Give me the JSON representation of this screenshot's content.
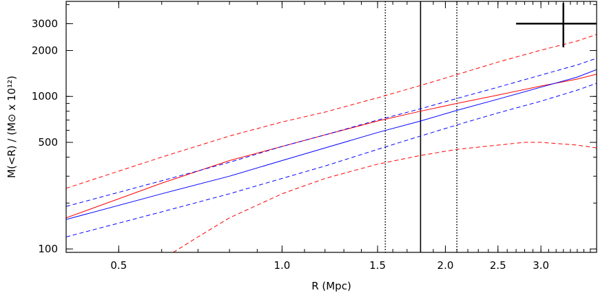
{
  "chart_data": {
    "type": "line",
    "xlabel": "R (Mpc)",
    "ylabel": "M(<R) / (M⊙ x 10¹²)",
    "xscale": "log",
    "yscale": "log",
    "xlim": [
      0.4,
      3.8
    ],
    "ylim": [
      95,
      4200
    ],
    "xticks": [
      0.5,
      1.0,
      1.5,
      2.0,
      2.5,
      3.0
    ],
    "xtick_labels": [
      "0.5",
      "1.0",
      "1.5",
      "2.0",
      "2.5",
      "3.0"
    ],
    "yticks": [
      100,
      500,
      1000,
      2000,
      3000
    ],
    "ytick_labels": [
      "100",
      "500",
      "1000",
      "2000",
      "3000"
    ],
    "grid": false,
    "legend": "none",
    "vlines": [
      {
        "x": 1.55,
        "style": "dotted",
        "color": "#000000"
      },
      {
        "x": 1.8,
        "style": "solid",
        "color": "#000000"
      },
      {
        "x": 2.1,
        "style": "dotted",
        "color": "#000000"
      }
    ],
    "error_cross": {
      "x": 3.3,
      "y": 3000,
      "x_range": [
        2.7,
        3.8
      ],
      "y_range": [
        2100,
        4100
      ]
    },
    "series": [
      {
        "color": "#ff0000",
        "style": "solid",
        "x": [
          0.4,
          0.6,
          0.8,
          1.0,
          1.2,
          1.5,
          1.8,
          2.1,
          2.5,
          3.0,
          3.5,
          3.8
        ],
        "y": [
          160,
          270,
          380,
          470,
          560,
          690,
          800,
          900,
          1020,
          1170,
          1300,
          1400
        ]
      },
      {
        "color": "#ff0000",
        "style": "dashed",
        "x": [
          0.4,
          0.6,
          0.8,
          1.0,
          1.2,
          1.5,
          1.8,
          2.1,
          2.5,
          3.0,
          3.5,
          3.8
        ],
        "y": [
          250,
          400,
          550,
          680,
          790,
          980,
          1180,
          1390,
          1680,
          2010,
          2310,
          2550
        ]
      },
      {
        "color": "#ff0000",
        "style": "dashed",
        "x": [
          0.63,
          0.7,
          0.8,
          1.0,
          1.2,
          1.5,
          1.8,
          2.1,
          2.5,
          2.8,
          3.0,
          3.5,
          3.8
        ],
        "y": [
          95,
          120,
          160,
          230,
          290,
          360,
          410,
          450,
          480,
          500,
          500,
          480,
          460
        ]
      },
      {
        "color": "#0000ff",
        "style": "solid",
        "x": [
          0.4,
          0.6,
          0.8,
          1.0,
          1.2,
          1.5,
          1.8,
          2.1,
          2.5,
          3.0,
          3.5,
          3.8
        ],
        "y": [
          156,
          230,
          300,
          380,
          460,
          580,
          690,
          810,
          960,
          1150,
          1340,
          1500
        ]
      },
      {
        "color": "#0000ff",
        "style": "dashed",
        "x": [
          0.4,
          0.6,
          0.8,
          1.0,
          1.2,
          1.5,
          1.8,
          2.1,
          2.5,
          3.0,
          3.5,
          3.8
        ],
        "y": [
          190,
          280,
          370,
          470,
          560,
          700,
          830,
          970,
          1150,
          1380,
          1610,
          1780
        ]
      },
      {
        "color": "#0000ff",
        "style": "dashed",
        "x": [
          0.4,
          0.6,
          0.8,
          1.0,
          1.2,
          1.5,
          1.8,
          2.1,
          2.5,
          3.0,
          3.5,
          3.8
        ],
        "y": [
          120,
          175,
          230,
          290,
          350,
          450,
          550,
          650,
          780,
          930,
          1100,
          1220
        ]
      }
    ]
  }
}
